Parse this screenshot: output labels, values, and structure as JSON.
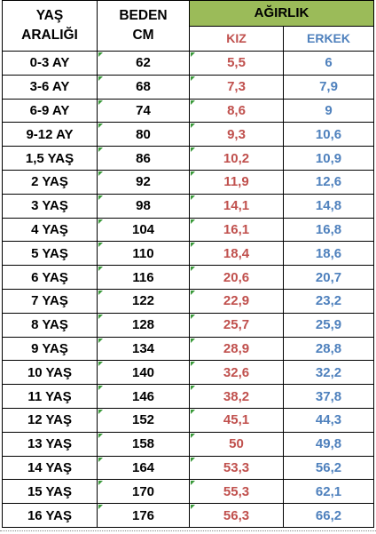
{
  "headers": {
    "age_line1": "YAŞ",
    "age_line2": "ARALIĞI",
    "size_line1": "BEDEN",
    "size_line2": "CM",
    "weight": "AĞIRLIK",
    "girl": "KIZ",
    "boy": "ERKEK"
  },
  "colors": {
    "weight_header_bg": "#9bbb59",
    "girl_text": "#c0504d",
    "boy_text": "#4f81bd"
  },
  "rows": [
    {
      "age": "0-3 AY",
      "size": "62",
      "kiz": "5,5",
      "erkek": "6"
    },
    {
      "age": "3-6 AY",
      "size": "68",
      "kiz": "7,3",
      "erkek": "7,9"
    },
    {
      "age": "6-9 AY",
      "size": "74",
      "kiz": "8,6",
      "erkek": "9"
    },
    {
      "age": "9-12 AY",
      "size": "80",
      "kiz": "9,3",
      "erkek": "10,6"
    },
    {
      "age": "1,5 YAŞ",
      "size": "86",
      "kiz": "10,2",
      "erkek": "10,9"
    },
    {
      "age": "2 YAŞ",
      "size": "92",
      "kiz": "11,9",
      "erkek": "12,6"
    },
    {
      "age": "3 YAŞ",
      "size": "98",
      "kiz": "14,1",
      "erkek": "14,8"
    },
    {
      "age": "4 YAŞ",
      "size": "104",
      "kiz": "16,1",
      "erkek": "16,8"
    },
    {
      "age": "5 YAŞ",
      "size": "110",
      "kiz": "18,4",
      "erkek": "18,6"
    },
    {
      "age": "6 YAŞ",
      "size": "116",
      "kiz": "20,6",
      "erkek": "20,7"
    },
    {
      "age": "7 YAŞ",
      "size": "122",
      "kiz": "22,9",
      "erkek": "23,2"
    },
    {
      "age": "8 YAŞ",
      "size": "128",
      "kiz": "25,7",
      "erkek": "25,9"
    },
    {
      "age": "9 YAŞ",
      "size": "134",
      "kiz": "28,9",
      "erkek": "28,8"
    },
    {
      "age": "10 YAŞ",
      "size": "140",
      "kiz": "32,6",
      "erkek": "32,2"
    },
    {
      "age": "11 YAŞ",
      "size": "146",
      "kiz": "38,2",
      "erkek": "37,8"
    },
    {
      "age": "12 YAŞ",
      "size": "152",
      "kiz": "45,1",
      "erkek": "44,3"
    },
    {
      "age": "13 YAŞ",
      "size": "158",
      "kiz": "50",
      "erkek": "49,8"
    },
    {
      "age": "14 YAŞ",
      "size": "164",
      "kiz": "53,3",
      "erkek": "56,2"
    },
    {
      "age": "15 YAŞ",
      "size": "170",
      "kiz": "55,3",
      "erkek": "62,1"
    },
    {
      "age": "16 YAŞ",
      "size": "176",
      "kiz": "56,3",
      "erkek": "66,2"
    }
  ]
}
